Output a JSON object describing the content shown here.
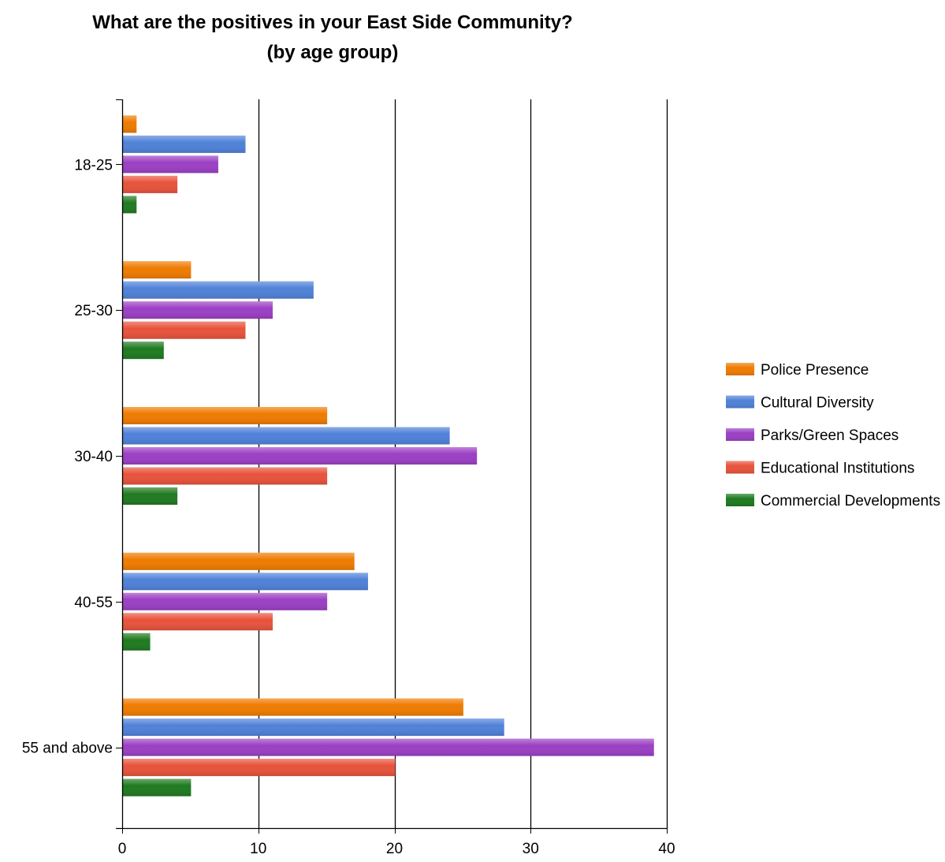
{
  "chart_data": {
    "type": "bar",
    "orientation": "horizontal",
    "title": "What are the positives in your East Side Community?",
    "subtitle": "(by age group)",
    "xlabel": "",
    "ylabel": "",
    "xlim": [
      0,
      40
    ],
    "xticks": [
      "0",
      "10",
      "20",
      "30",
      "40"
    ],
    "grid": "vertical lines",
    "legend_position": "right",
    "categories": [
      "18-25",
      "25-30",
      "30-40",
      "40-55",
      "55 and above"
    ],
    "series": [
      {
        "name": "Police Presence",
        "color": "#ef7b00",
        "values": [
          1,
          5,
          15,
          17,
          25
        ]
      },
      {
        "name": "Cultural Diversity",
        "color": "#4f81d8",
        "values": [
          9,
          14,
          24,
          18,
          28
        ]
      },
      {
        "name": "Parks/Green Spaces",
        "color": "#9b3fc4",
        "values": [
          7,
          11,
          26,
          15,
          39
        ]
      },
      {
        "name": "Educational Institutions",
        "color": "#e8523b",
        "values": [
          4,
          9,
          15,
          11,
          20
        ]
      },
      {
        "name": "Commercial Developments",
        "color": "#1f7a1f",
        "values": [
          1,
          3,
          4,
          2,
          5
        ]
      }
    ]
  }
}
